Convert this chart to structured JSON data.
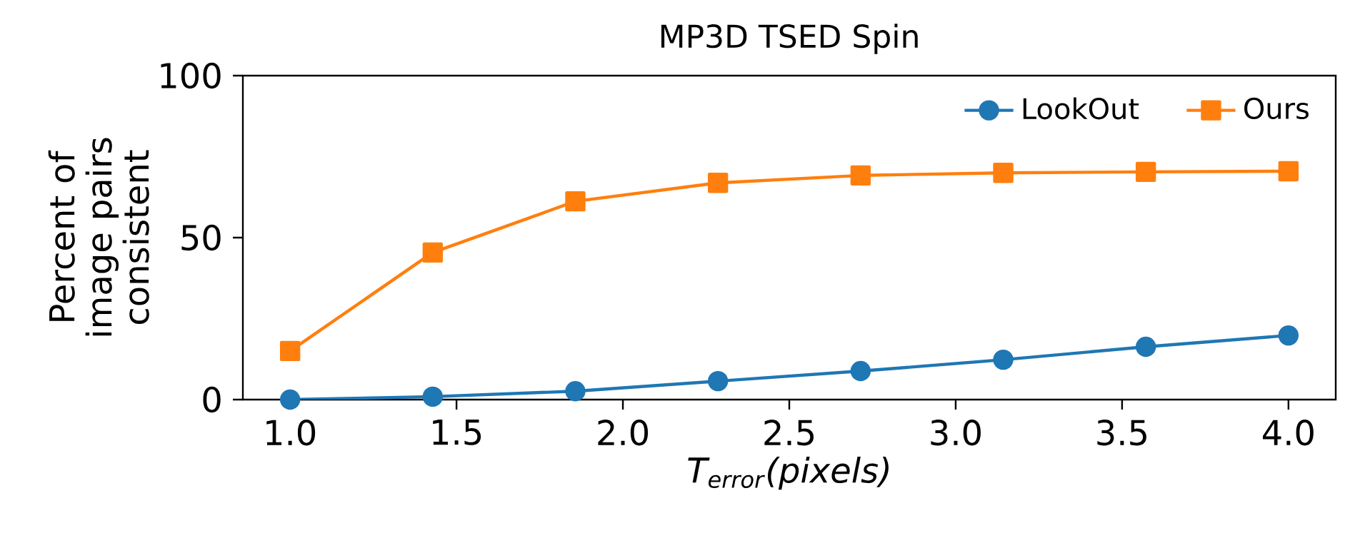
{
  "chart_data": {
    "type": "line",
    "title": "MP3D TSED Spin",
    "xlabel": "T$_{error}$(pixels)",
    "ylabel": "Percent of image pairs consistent",
    "x": [
      1.0,
      1.4286,
      1.8571,
      2.2857,
      2.7143,
      3.1429,
      3.5714,
      4.0
    ],
    "series": [
      {
        "name": "LookOut",
        "color": "#1f77b4",
        "marker": "circle",
        "values": [
          0,
          0.9,
          2.6,
          5.7,
          8.8,
          12.3,
          16.3,
          19.8
        ]
      },
      {
        "name": "Ours",
        "color": "#ff7f0e",
        "marker": "square",
        "values": [
          15.0,
          45.4,
          61.2,
          66.9,
          69.2,
          70.0,
          70.3,
          70.5
        ]
      }
    ],
    "xlim": [
      0.858,
      4.142
    ],
    "ylim": [
      0,
      100
    ],
    "xticks": [
      {
        "value": 1.0,
        "label": "1.0"
      },
      {
        "value": 1.5,
        "label": "1.5"
      },
      {
        "value": 2.0,
        "label": "2.0"
      },
      {
        "value": 2.5,
        "label": "2.5"
      },
      {
        "value": 3.0,
        "label": "3.0"
      },
      {
        "value": 3.5,
        "label": "3.5"
      },
      {
        "value": 4.0,
        "label": "4.0"
      }
    ],
    "yticks": [
      0,
      50,
      100
    ],
    "legend": "top right",
    "grid": false,
    "line_style": "solid"
  }
}
